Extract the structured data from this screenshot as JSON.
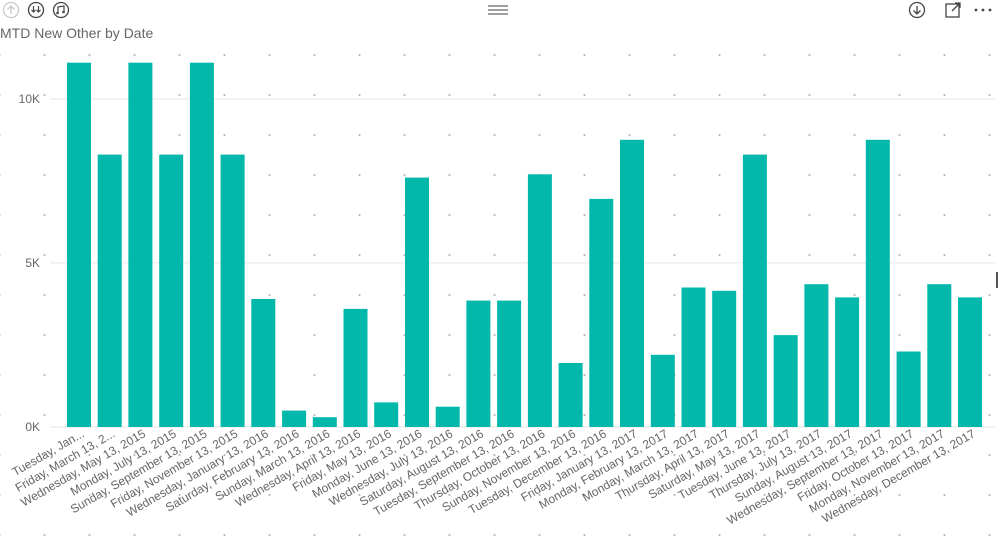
{
  "visual": {
    "title": "MTD New Other by Date",
    "header_icons": [
      "drill-up-icon",
      "drill-down-all-icon",
      "expand-all-icon",
      "drag-handle-icon",
      "drill-mode-icon",
      "focus-mode-icon",
      "more-options-icon"
    ]
  },
  "chart_data": {
    "type": "bar",
    "title": "MTD New Other by Date",
    "xlabel": "",
    "ylabel": "",
    "ylim": [
      0,
      11000
    ],
    "yticks": [
      0,
      5000,
      10000
    ],
    "ytick_labels": [
      "0K",
      "5K",
      "10K"
    ],
    "grid": true,
    "bar_color": "#01B8AA",
    "categories": [
      "Tuesday, Jan...",
      "Friday, March 13, 2...",
      "Wednesday, May 13, 2015",
      "Monday, July 13, 2015",
      "Sunday, September 13, 2015",
      "Friday, November 13, 2015",
      "Wednesday, January 13, 2016",
      "Saturday, February 13, 2016",
      "Sunday, March 13, 2016",
      "Wednesday, April 13, 2016",
      "Friday, May 13, 2016",
      "Monday, June 13, 2016",
      "Wednesday, July 13, 2016",
      "Saturday, August 13, 2016",
      "Tuesday, September 13, 2016",
      "Thursday, October 13, 2016",
      "Sunday, November 13, 2016",
      "Tuesday, December 13, 2016",
      "Friday, January 13, 2017",
      "Monday, February 13, 2017",
      "Monday, March 13, 2017",
      "Thursday, April 13, 2017",
      "Saturday, May 13, 2017",
      "Tuesday, June 13, 2017",
      "Thursday, July 13, 2017",
      "Sunday, August 13, 2017",
      "Wednesday, September 13, 2017",
      "Friday, October 13, 2017",
      "Monday, November 13, 2017",
      "Wednesday, December 13, 2017"
    ],
    "values": [
      11100,
      8300,
      11100,
      8300,
      11100,
      8300,
      3900,
      500,
      300,
      3600,
      750,
      7600,
      620,
      3850,
      3850,
      7700,
      1950,
      6950,
      8750,
      2200,
      4250,
      4150,
      8300,
      2800,
      4350,
      3950,
      8750,
      2300,
      4350,
      3950
    ]
  }
}
